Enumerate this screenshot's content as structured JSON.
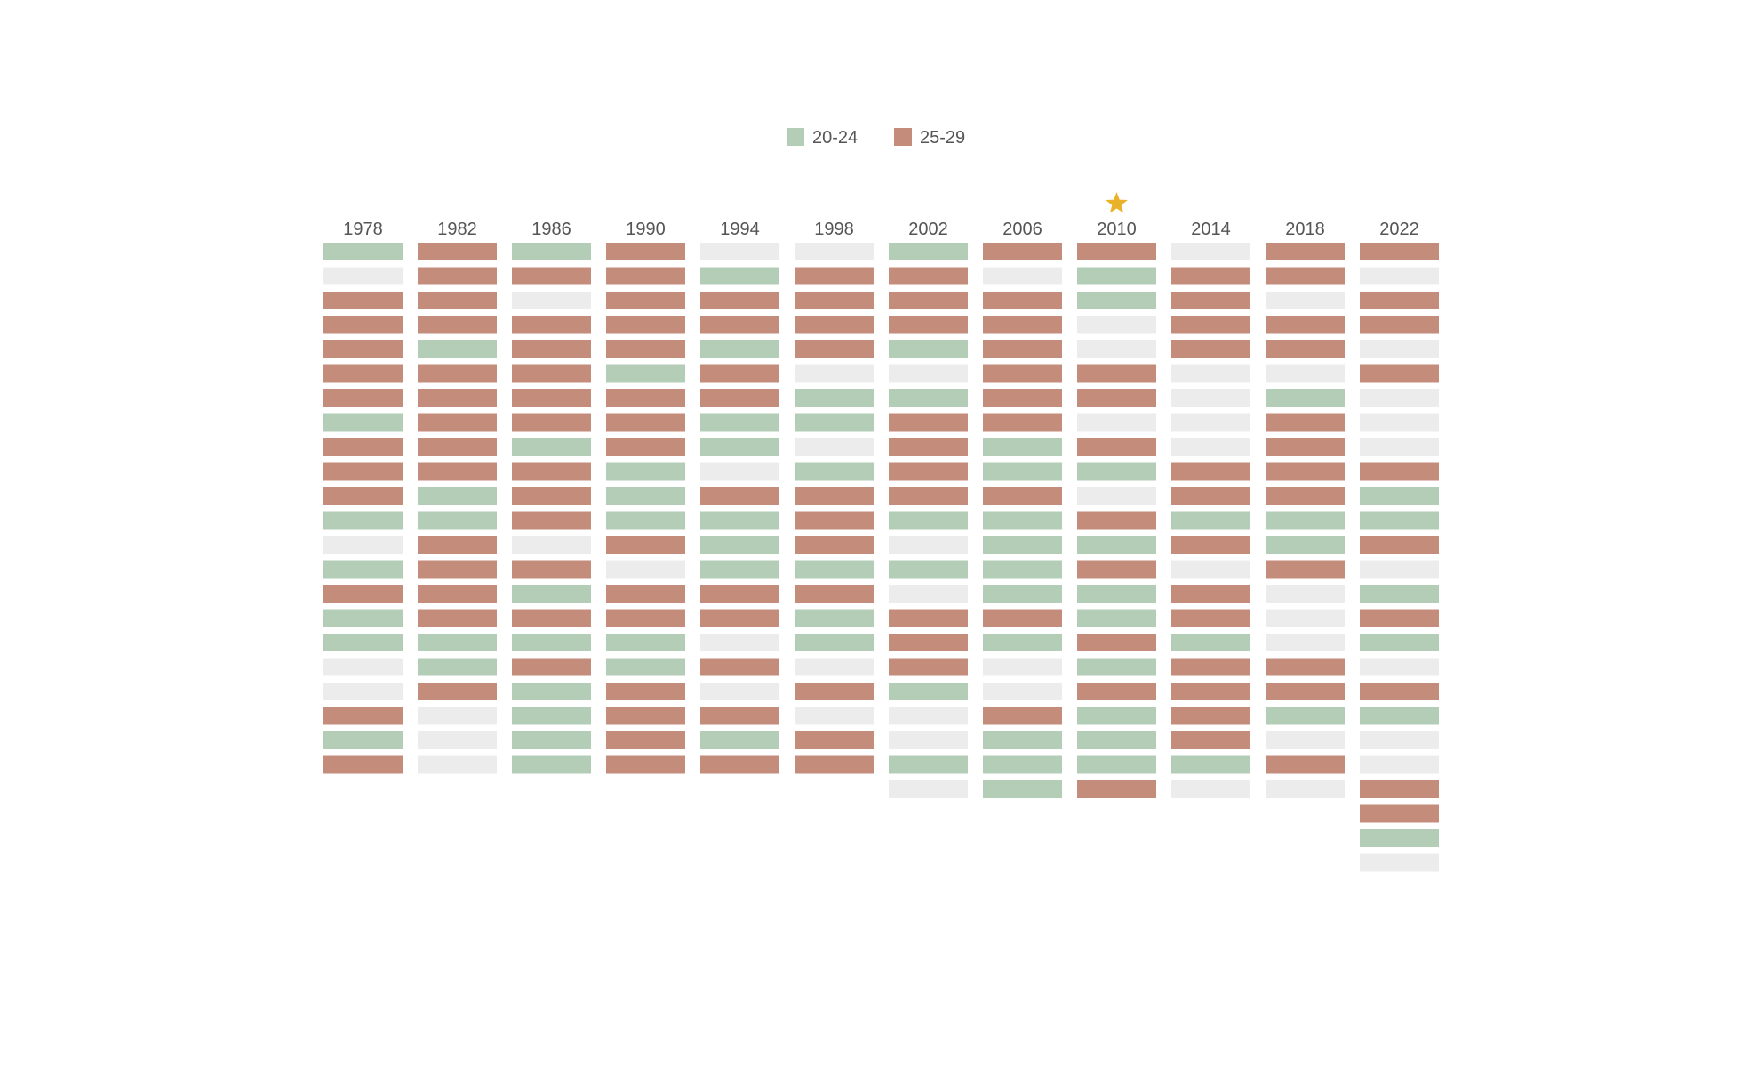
{
  "chart_data": {
    "type": "heatmap",
    "legend": {
      "placement": "top-center",
      "items": [
        {
          "key": "G",
          "label": "20-24",
          "color": "#b4cdb7"
        },
        {
          "key": "R",
          "label": "25-29",
          "color": "#c48d7b"
        }
      ]
    },
    "empty_color": "#ececec",
    "star_color": "#eab22a",
    "highlighted_column": "2010",
    "columns": [
      {
        "label": "1978",
        "cells": [
          "G",
          "E",
          "R",
          "R",
          "R",
          "R",
          "R",
          "G",
          "R",
          "R",
          "R",
          "G",
          "E",
          "G",
          "R",
          "G",
          "G",
          "E",
          "E",
          "R",
          "G",
          "R"
        ]
      },
      {
        "label": "1982",
        "cells": [
          "R",
          "R",
          "R",
          "R",
          "G",
          "R",
          "R",
          "R",
          "R",
          "R",
          "G",
          "G",
          "R",
          "R",
          "R",
          "R",
          "G",
          "G",
          "R",
          "E",
          "E",
          "E"
        ]
      },
      {
        "label": "1986",
        "cells": [
          "G",
          "R",
          "E",
          "R",
          "R",
          "R",
          "R",
          "R",
          "G",
          "R",
          "R",
          "R",
          "E",
          "R",
          "G",
          "R",
          "G",
          "R",
          "G",
          "G",
          "G",
          "G"
        ]
      },
      {
        "label": "1990",
        "cells": [
          "R",
          "R",
          "R",
          "R",
          "R",
          "G",
          "R",
          "R",
          "R",
          "G",
          "G",
          "G",
          "R",
          "E",
          "R",
          "R",
          "G",
          "G",
          "R",
          "R",
          "R",
          "R"
        ]
      },
      {
        "label": "1994",
        "cells": [
          "E",
          "G",
          "R",
          "R",
          "G",
          "R",
          "R",
          "G",
          "G",
          "E",
          "R",
          "G",
          "G",
          "G",
          "R",
          "R",
          "E",
          "R",
          "E",
          "R",
          "G",
          "R"
        ]
      },
      {
        "label": "1998",
        "cells": [
          "E",
          "R",
          "R",
          "R",
          "R",
          "E",
          "G",
          "G",
          "E",
          "G",
          "R",
          "R",
          "R",
          "G",
          "R",
          "G",
          "G",
          "E",
          "R",
          "E",
          "R",
          "R"
        ]
      },
      {
        "label": "2002",
        "cells": [
          "G",
          "R",
          "R",
          "R",
          "G",
          "E",
          "G",
          "R",
          "R",
          "R",
          "R",
          "G",
          "E",
          "G",
          "E",
          "R",
          "R",
          "R",
          "G",
          "E",
          "E",
          "G",
          "E"
        ]
      },
      {
        "label": "2006",
        "cells": [
          "R",
          "E",
          "R",
          "R",
          "R",
          "R",
          "R",
          "R",
          "G",
          "G",
          "R",
          "G",
          "G",
          "G",
          "G",
          "R",
          "G",
          "E",
          "E",
          "R",
          "G",
          "G",
          "G"
        ]
      },
      {
        "label": "2010",
        "cells": [
          "R",
          "G",
          "G",
          "E",
          "E",
          "R",
          "R",
          "E",
          "R",
          "G",
          "E",
          "R",
          "G",
          "R",
          "G",
          "G",
          "R",
          "G",
          "R",
          "G",
          "G",
          "G",
          "R"
        ]
      },
      {
        "label": "2014",
        "cells": [
          "E",
          "R",
          "R",
          "R",
          "R",
          "E",
          "E",
          "E",
          "E",
          "R",
          "R",
          "G",
          "R",
          "E",
          "R",
          "R",
          "G",
          "R",
          "R",
          "R",
          "R",
          "G",
          "E"
        ]
      },
      {
        "label": "2018",
        "cells": [
          "R",
          "R",
          "E",
          "R",
          "R",
          "E",
          "G",
          "R",
          "R",
          "R",
          "R",
          "G",
          "G",
          "R",
          "E",
          "E",
          "E",
          "R",
          "R",
          "G",
          "E",
          "R",
          "E"
        ]
      },
      {
        "label": "2022",
        "cells": [
          "R",
          "E",
          "R",
          "R",
          "E",
          "R",
          "E",
          "E",
          "E",
          "R",
          "G",
          "G",
          "R",
          "E",
          "G",
          "R",
          "G",
          "E",
          "R",
          "G",
          "E",
          "E",
          "R",
          "R",
          "G",
          "E"
        ]
      }
    ]
  }
}
